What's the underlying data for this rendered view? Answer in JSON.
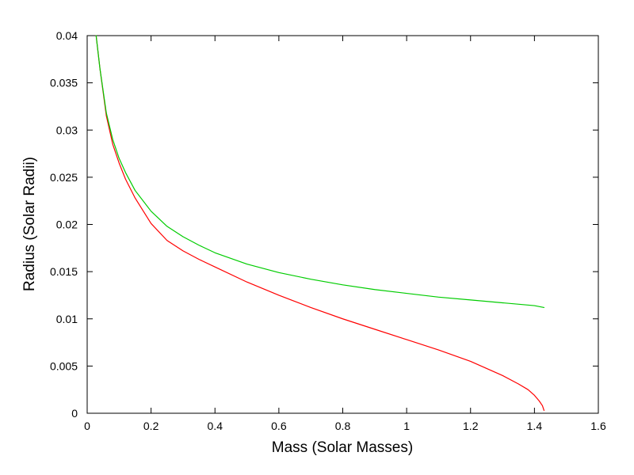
{
  "chart_data": {
    "type": "line",
    "title": "",
    "xlabel": "Mass (Solar Masses)",
    "ylabel": "Radius (Solar Radii)",
    "xlim": [
      0,
      1.6
    ],
    "ylim": [
      0,
      0.04
    ],
    "x_ticks": [
      "0",
      "0.2",
      "0.4",
      "0.6",
      "0.8",
      "1",
      "1.2",
      "1.4",
      "1.6"
    ],
    "y_ticks": [
      "0",
      "0.005",
      "0.01",
      "0.015",
      "0.02",
      "0.025",
      "0.03",
      "0.035",
      "0.04"
    ],
    "grid": false,
    "legend": "none",
    "series": [
      {
        "color": "#ff0000",
        "points": [
          [
            0.028,
            0.04
          ],
          [
            0.04,
            0.0365
          ],
          [
            0.06,
            0.0315
          ],
          [
            0.08,
            0.0285
          ],
          [
            0.1,
            0.0265
          ],
          [
            0.12,
            0.0248
          ],
          [
            0.15,
            0.0228
          ],
          [
            0.2,
            0.0201
          ],
          [
            0.25,
            0.0183
          ],
          [
            0.3,
            0.0172
          ],
          [
            0.35,
            0.0163
          ],
          [
            0.4,
            0.0155
          ],
          [
            0.5,
            0.0139
          ],
          [
            0.6,
            0.0125
          ],
          [
            0.7,
            0.0112
          ],
          [
            0.8,
            0.01
          ],
          [
            0.9,
            0.0089
          ],
          [
            1.0,
            0.0078
          ],
          [
            1.1,
            0.0067
          ],
          [
            1.2,
            0.0055
          ],
          [
            1.3,
            0.004
          ],
          [
            1.35,
            0.0031
          ],
          [
            1.38,
            0.0025
          ],
          [
            1.4,
            0.0019
          ],
          [
            1.415,
            0.0013
          ],
          [
            1.425,
            0.0008
          ],
          [
            1.43,
            0.0003
          ]
        ]
      },
      {
        "color": "#00cc00",
        "points": [
          [
            0.028,
            0.04
          ],
          [
            0.04,
            0.0365
          ],
          [
            0.06,
            0.0318
          ],
          [
            0.08,
            0.029
          ],
          [
            0.1,
            0.027
          ],
          [
            0.12,
            0.0255
          ],
          [
            0.15,
            0.0236
          ],
          [
            0.2,
            0.0214
          ],
          [
            0.25,
            0.0198
          ],
          [
            0.3,
            0.0187
          ],
          [
            0.35,
            0.0178
          ],
          [
            0.4,
            0.017
          ],
          [
            0.5,
            0.0158
          ],
          [
            0.6,
            0.0149
          ],
          [
            0.7,
            0.0142
          ],
          [
            0.8,
            0.0136
          ],
          [
            0.9,
            0.0131
          ],
          [
            1.0,
            0.0127
          ],
          [
            1.1,
            0.0123
          ],
          [
            1.2,
            0.012
          ],
          [
            1.3,
            0.0117
          ],
          [
            1.4,
            0.0114
          ],
          [
            1.43,
            0.0112
          ]
        ]
      }
    ]
  }
}
